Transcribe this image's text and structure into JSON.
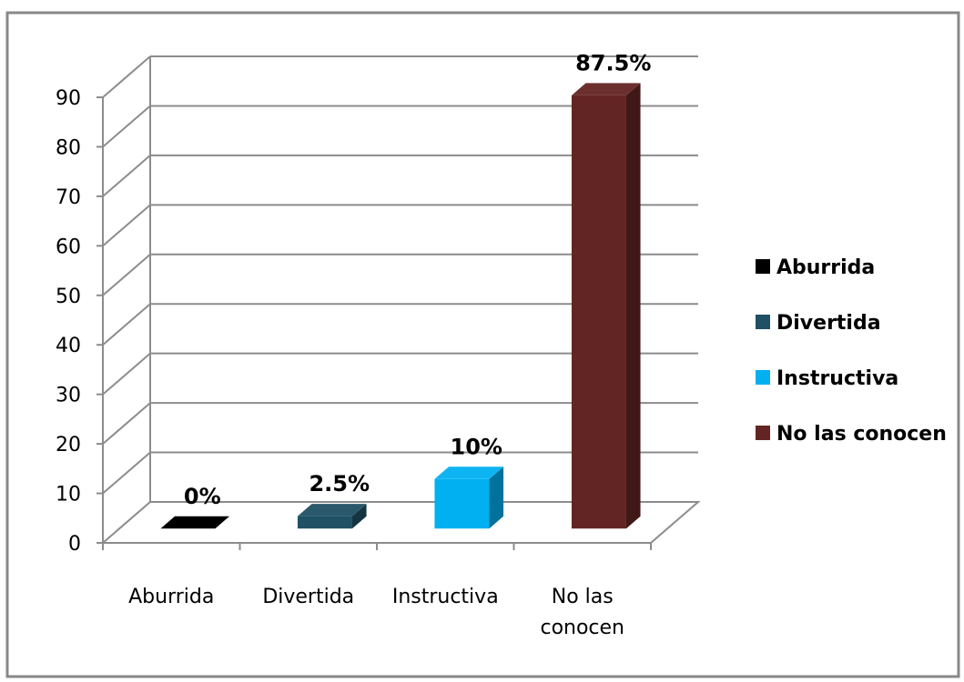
{
  "chart_data": {
    "type": "bar",
    "categories": [
      "Aburrida",
      "Divertida",
      "Instructiva",
      "No las conocen"
    ],
    "category_tick_labels": [
      [
        "Aburrida"
      ],
      [
        "Divertida"
      ],
      [
        "Instructiva"
      ],
      [
        "No las",
        "conocen"
      ]
    ],
    "values": [
      0,
      2.5,
      10,
      87.5
    ],
    "data_labels": [
      "0%",
      "2.5%",
      "10%",
      "87.5%"
    ],
    "ylim": [
      0,
      90
    ],
    "yticks": [
      "0",
      "10",
      "20",
      "30",
      "40",
      "50",
      "60",
      "70",
      "80",
      "90"
    ],
    "grid": true,
    "legend_position": "right",
    "legend": [
      "Aburrida",
      "Divertida",
      "Instructiva",
      "No las conocen"
    ],
    "colors": [
      "#000000",
      "#1f5063",
      "#00b0f0",
      "#632523"
    ]
  }
}
